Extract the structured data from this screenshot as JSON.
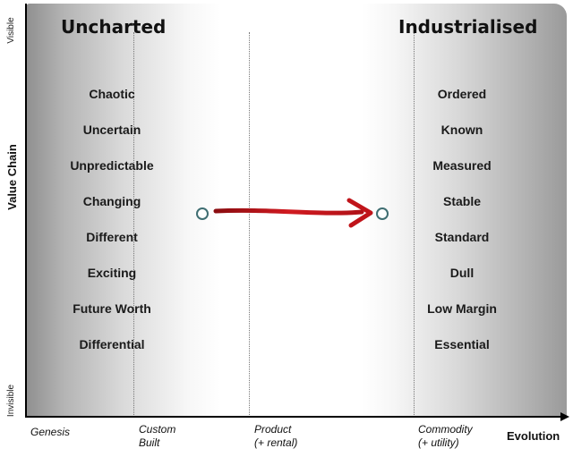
{
  "headings": {
    "left": "Uncharted",
    "right": "Industrialised"
  },
  "left_column": [
    "Chaotic",
    "Uncertain",
    "Unpredictable",
    "Changing",
    "Different",
    "Exciting",
    "Future Worth",
    "Differential"
  ],
  "right_column": [
    "Ordered",
    "Known",
    "Measured",
    "Stable",
    "Standard",
    "Dull",
    "Low Margin",
    "Essential"
  ],
  "y_axis": {
    "title": "Value Chain",
    "top": "Visible",
    "bottom": "Invisible"
  },
  "x_axis": {
    "title": "Evolution",
    "stages": {
      "genesis": [
        "Genesis"
      ],
      "custom": [
        "Custom",
        "Built"
      ],
      "product": [
        "Product",
        "(+ rental)"
      ],
      "commodity": [
        "Commodity",
        "(+ utility)"
      ]
    }
  },
  "colors": {
    "arrow": "#c0141a",
    "node_stroke": "#3f6e72",
    "axis": "#000000"
  }
}
